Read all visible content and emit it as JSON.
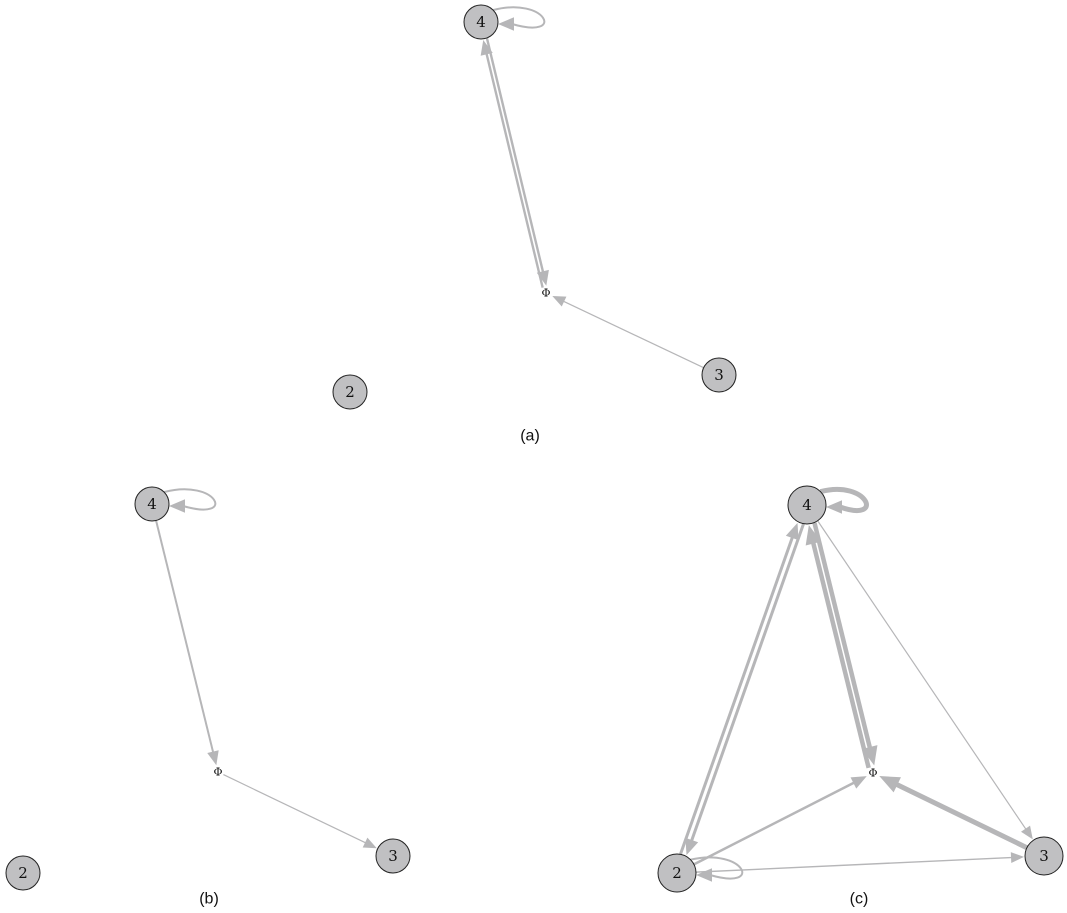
{
  "edge_color": "#b6b6b8",
  "node_fill": "#c0c0c2",
  "graphs": [
    {
      "caption": "(a)",
      "nodes": [
        {
          "id": "4",
          "label": "4"
        },
        {
          "id": "phi",
          "label": "Φ"
        },
        {
          "id": "3",
          "label": "3"
        },
        {
          "id": "2",
          "label": "2"
        }
      ],
      "edges": [
        {
          "from": "4",
          "to": "4"
        },
        {
          "from": "4",
          "to": "phi"
        },
        {
          "from": "phi",
          "to": "4"
        },
        {
          "from": "3",
          "to": "phi"
        }
      ]
    },
    {
      "caption": "(b)",
      "nodes": [
        {
          "id": "4",
          "label": "4"
        },
        {
          "id": "phi",
          "label": "Φ"
        },
        {
          "id": "3",
          "label": "3"
        },
        {
          "id": "2",
          "label": "2"
        }
      ],
      "edges": [
        {
          "from": "4",
          "to": "4"
        },
        {
          "from": "4",
          "to": "phi"
        },
        {
          "from": "phi",
          "to": "3"
        }
      ]
    },
    {
      "caption": "(c)",
      "nodes": [
        {
          "id": "4",
          "label": "4"
        },
        {
          "id": "phi",
          "label": "Φ"
        },
        {
          "id": "3",
          "label": "3"
        },
        {
          "id": "2",
          "label": "2"
        }
      ],
      "edges": [
        {
          "from": "4",
          "to": "4"
        },
        {
          "from": "4",
          "to": "phi"
        },
        {
          "from": "phi",
          "to": "4"
        },
        {
          "from": "4",
          "to": "3"
        },
        {
          "from": "4",
          "to": "2"
        },
        {
          "from": "2",
          "to": "4"
        },
        {
          "from": "2",
          "to": "phi"
        },
        {
          "from": "2",
          "to": "3"
        },
        {
          "from": "2",
          "to": "2"
        },
        {
          "from": "3",
          "to": "phi"
        }
      ]
    }
  ]
}
